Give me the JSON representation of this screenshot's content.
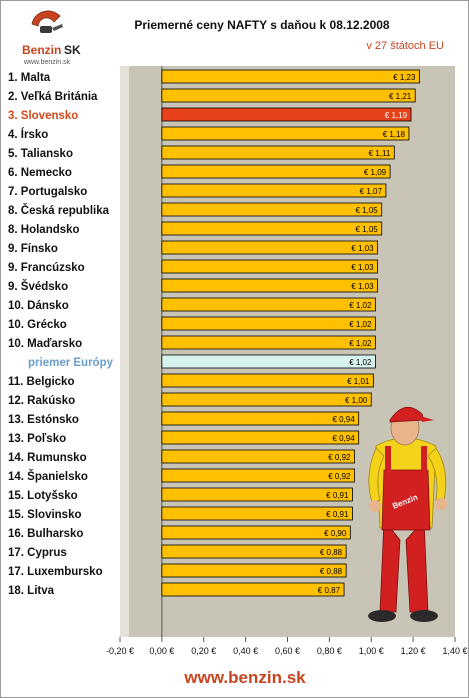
{
  "brand": {
    "logo_text": "Benzin",
    "logo_text_accent": "SK",
    "logo_url": "www.benzin.sk",
    "footer_url": "www.benzin.sk"
  },
  "colors": {
    "bar_fill": "#ffc000",
    "bar_highlight": "#e8421c",
    "bar_average": "#d7f2ef",
    "plot_background": "#c9c5b6",
    "highlight_label": "#d2481a",
    "average_label": "#6a9ed0",
    "accent_red": "#c8441f"
  },
  "chart_data": {
    "type": "bar",
    "orientation": "horizontal",
    "title": "Priemerné ceny NAFTY s daňou k 08.12.2008",
    "subtitle": "v 27 štátoch EU",
    "xlabel": "",
    "ylabel": "",
    "xlim": [
      -0.2,
      1.4
    ],
    "x_ticks": [
      "-0,20 €",
      "0,00 €",
      "0,20 €",
      "0,40 €",
      "0,60 €",
      "0,80 €",
      "1,00 €",
      "1,20 €",
      "1,40 €"
    ],
    "x_tick_values": [
      -0.2,
      0,
      0.2,
      0.4,
      0.6,
      0.8,
      1.0,
      1.2,
      1.4
    ],
    "grid": false,
    "legend": "none",
    "categories": [
      "1. Malta",
      "2. Veľká Británia",
      "3. Slovensko",
      "4. Írsko",
      "5. Taliansko",
      "6. Nemecko",
      "7. Portugalsko",
      "8. Česká republika",
      "8. Holandsko",
      "9. Fínsko",
      "9. Francúzsko",
      "9. Švédsko",
      "10. Dánsko",
      "10. Grécko",
      "10. Maďarsko",
      "priemer Európy",
      "11. Belgicko",
      "12. Rakúsko",
      "13. Estónsko",
      "13. Poľsko",
      "14. Rumunsko",
      "14. Španielsko",
      "15. Lotyšsko",
      "15. Slovinsko",
      "16. Bulharsko",
      "17. Cyprus",
      "17. Luxembursko",
      "18. Litva"
    ],
    "values": [
      1.23,
      1.21,
      1.19,
      1.18,
      1.11,
      1.09,
      1.07,
      1.05,
      1.05,
      1.03,
      1.03,
      1.03,
      1.02,
      1.02,
      1.02,
      1.02,
      1.01,
      1.0,
      0.94,
      0.94,
      0.92,
      0.92,
      0.91,
      0.91,
      0.9,
      0.88,
      0.88,
      0.87
    ],
    "data_labels": [
      "€ 1,23",
      "€ 1,21",
      "€ 1,19",
      "€ 1,18",
      "€ 1,11",
      "€ 1,09",
      "€ 1,07",
      "€ 1,05",
      "€ 1,05",
      "€ 1,03",
      "€ 1,03",
      "€ 1,03",
      "€ 1,02",
      "€ 1,02",
      "€ 1,02",
      "€ 1,02",
      "€ 1,01",
      "€ 1,00",
      "€ 0,94",
      "€ 0,94",
      "€ 0,92",
      "€ 0,92",
      "€ 0,91",
      "€ 0,91",
      "€ 0,90",
      "€ 0,88",
      "€ 0,88",
      "€ 0,87"
    ],
    "highlight_index": 2,
    "average_index": 15
  }
}
